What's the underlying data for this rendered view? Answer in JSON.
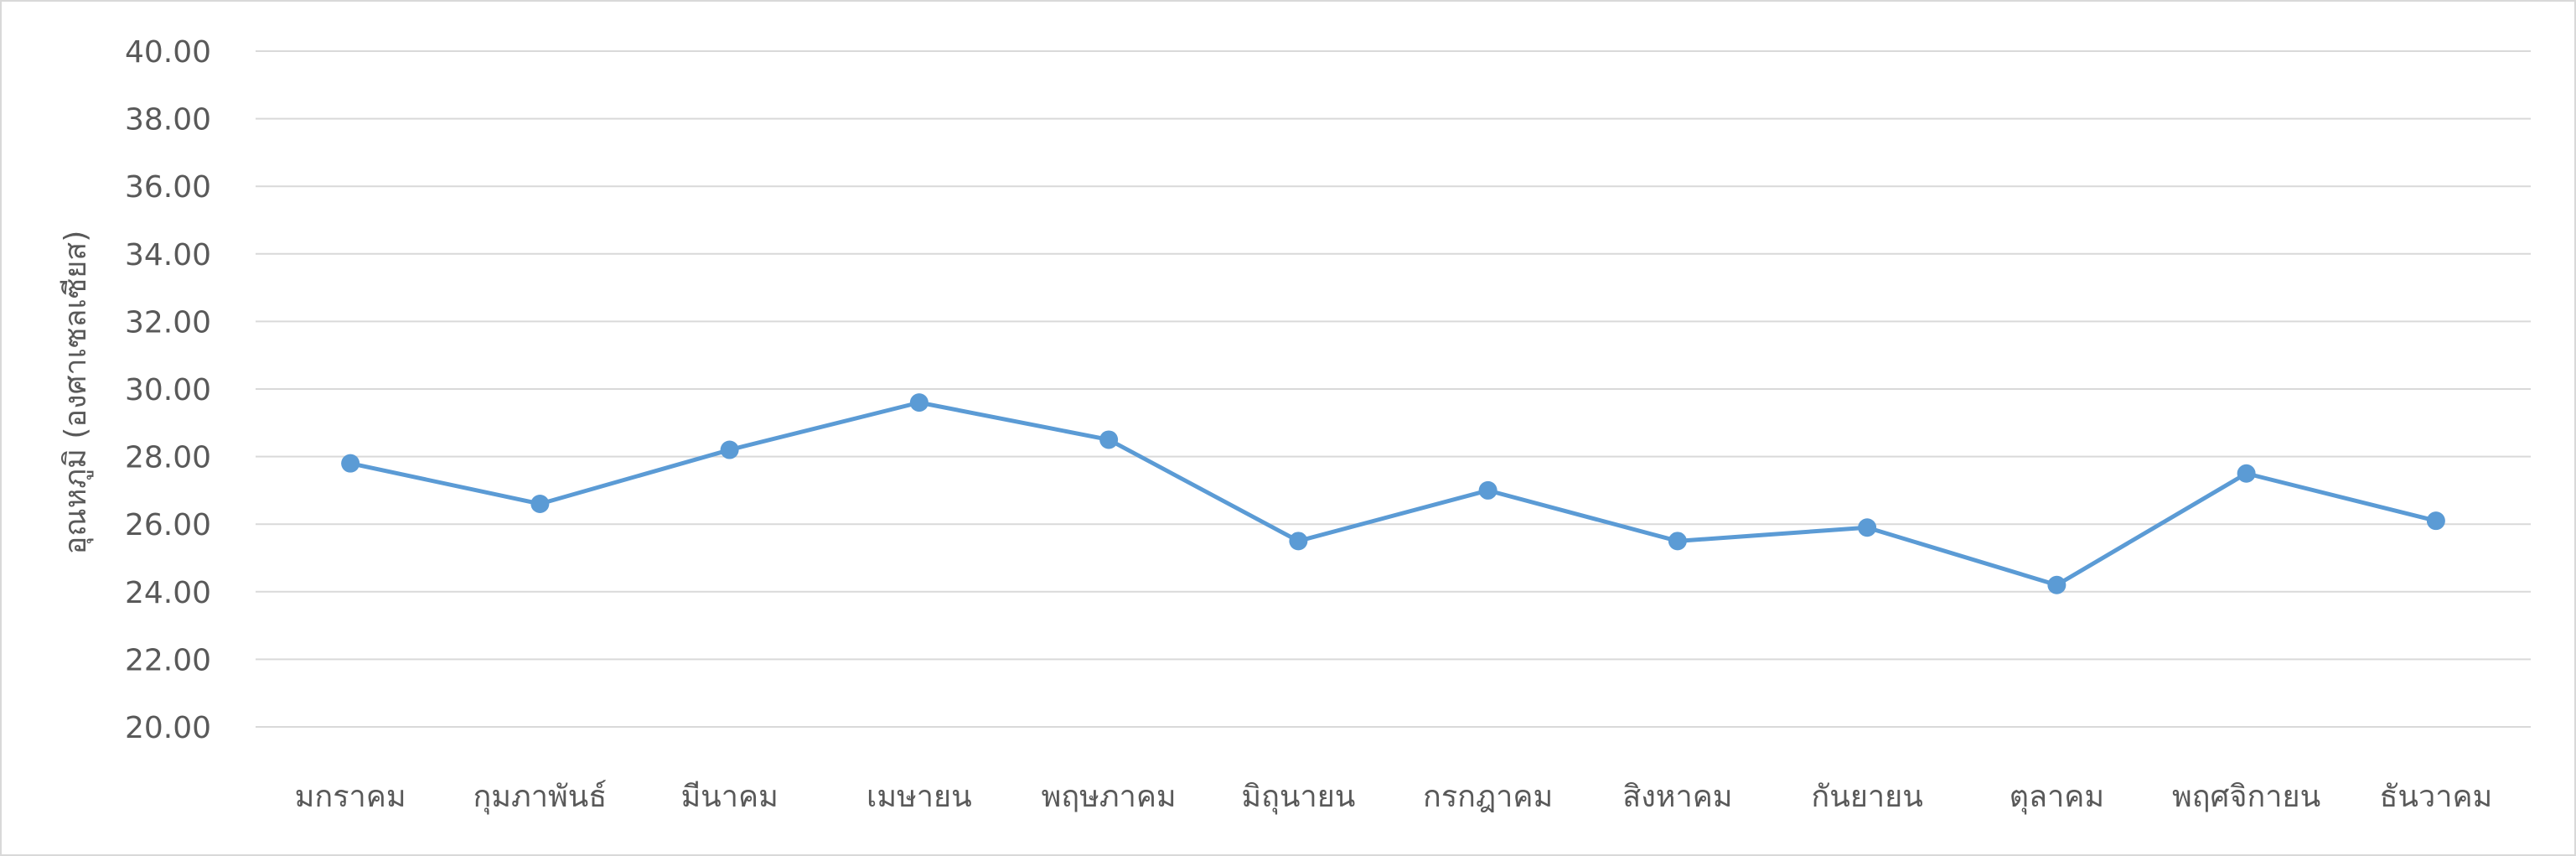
{
  "chart_data": {
    "type": "line",
    "title": "",
    "xlabel": "",
    "ylabel": "อุณหภูมิ (องศาเซลเซียส)",
    "ylim": [
      20,
      40
    ],
    "y_ticks": [
      "20.00",
      "22.00",
      "24.00",
      "26.00",
      "28.00",
      "30.00",
      "32.00",
      "34.00",
      "36.00",
      "38.00",
      "40.00"
    ],
    "grid": true,
    "legend": "none",
    "categories": [
      "มกราคม",
      "กุมภาพันธ์",
      "มีนาคม",
      "เมษายน",
      "พฤษภาคม",
      "มิถุนายน",
      "กรกฎาคม",
      "สิงหาคม",
      "กันยายน",
      "ตุลาคม",
      "พฤศจิกายน",
      "ธันวาคม"
    ],
    "series": [
      {
        "values": [
          27.8,
          26.6,
          28.2,
          29.6,
          28.5,
          25.5,
          27.0,
          25.5,
          25.9,
          24.2,
          27.5,
          26.1
        ]
      }
    ],
    "colors": {
      "line": "#5b9bd5",
      "grid": "#d9d9d9",
      "text": "#595959"
    }
  }
}
